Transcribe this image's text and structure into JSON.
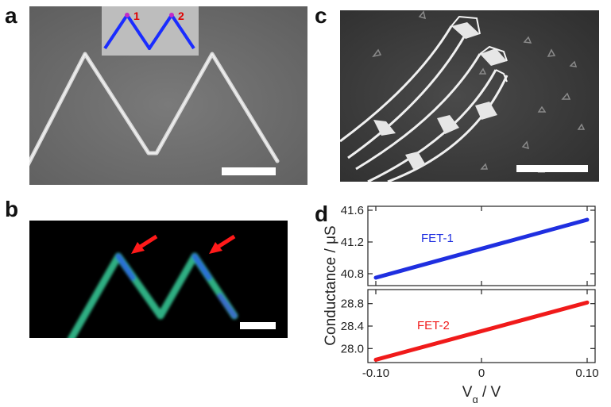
{
  "panels": {
    "a": {
      "letter": "a",
      "inset_labels": [
        "1",
        "2"
      ]
    },
    "b": {
      "letter": "b"
    },
    "c": {
      "letter": "c"
    },
    "d": {
      "letter": "d"
    }
  },
  "colors": {
    "inset_line": "#1a2cff",
    "inset_marker": "#c02ac8",
    "inset_label": "#e00000",
    "arrow": "#ff1a1a",
    "fet1": "#1f2fe0",
    "fet2": "#f01a1a",
    "sem_background": "#6f6f6f",
    "fluorescence_background": "#000000",
    "fluorescence_wire": "#2fae82"
  },
  "chart_data": [
    {
      "type": "line",
      "panel": "d-top",
      "series": [
        {
          "name": "FET-1",
          "x": [
            -0.1,
            0.1
          ],
          "values": [
            40.75,
            41.48
          ],
          "color": "#1f2fe0"
        }
      ],
      "yticks": [
        "40.8",
        "41.2",
        "41.6"
      ],
      "ylim": [
        40.65,
        41.65
      ],
      "xlim": [
        -0.1,
        0.1
      ]
    },
    {
      "type": "line",
      "panel": "d-bottom",
      "series": [
        {
          "name": "FET-2",
          "x": [
            -0.1,
            0.1
          ],
          "values": [
            27.8,
            28.82
          ],
          "color": "#f01a1a"
        }
      ],
      "yticks": [
        "28.0",
        "28.4",
        "28.8"
      ],
      "ylim": [
        27.75,
        29.05
      ],
      "xlim": [
        -0.1,
        0.1
      ],
      "xticks": [
        "-0.10",
        "0",
        "0.10"
      ]
    }
  ],
  "axes": {
    "ylabel": "Conductance / μS",
    "xlabel_main": "V",
    "xlabel_sub": "g",
    "xlabel_rest": " / V"
  }
}
